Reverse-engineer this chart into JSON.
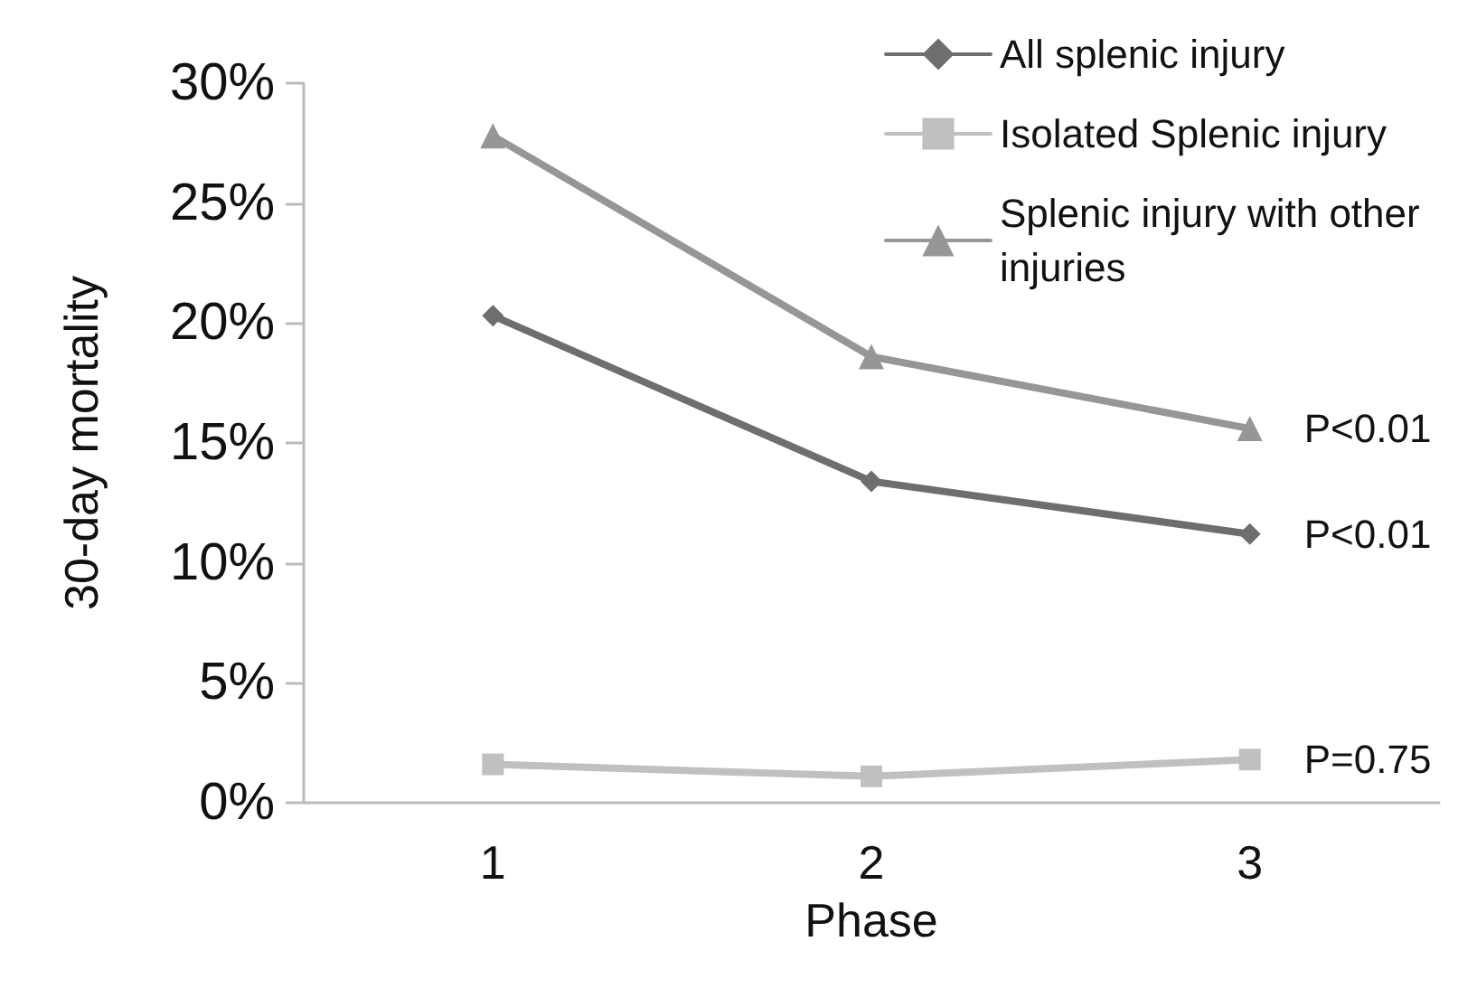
{
  "chart_data": {
    "type": "line",
    "xlabel": "Phase",
    "ylabel": "30-day mortality",
    "categories": [
      "1",
      "2",
      "3"
    ],
    "series": [
      {
        "name": "All splenic injury",
        "color": "#6e6e6e",
        "marker": "diamond",
        "values": [
          20.3,
          13.4,
          11.2
        ]
      },
      {
        "name": "Isolated Splenic injury",
        "color": "#c0c0c0",
        "marker": "square",
        "values": [
          1.6,
          1.1,
          1.8
        ]
      },
      {
        "name": "Splenic injury with other injuries",
        "color": "#969696",
        "marker": "triangle",
        "values": [
          27.8,
          18.6,
          15.6
        ]
      }
    ],
    "ylim": [
      0,
      30
    ],
    "yticks": [
      {
        "value": 0,
        "label": "0%"
      },
      {
        "value": 5,
        "label": "5%"
      },
      {
        "value": 10,
        "label": "10%"
      },
      {
        "value": 15,
        "label": "15%"
      },
      {
        "value": 20,
        "label": "20%"
      },
      {
        "value": 25,
        "label": "25%"
      },
      {
        "value": 30,
        "label": "30%"
      }
    ],
    "annotations": [
      {
        "text": "P<0.01",
        "x": "3",
        "y": 15.6
      },
      {
        "text": "P<0.01",
        "x": "3",
        "y": 11.2
      },
      {
        "text": "P=0.75",
        "x": "3",
        "y": 1.8
      }
    ],
    "grid": false,
    "legend": "top right",
    "line_style": "solid"
  }
}
